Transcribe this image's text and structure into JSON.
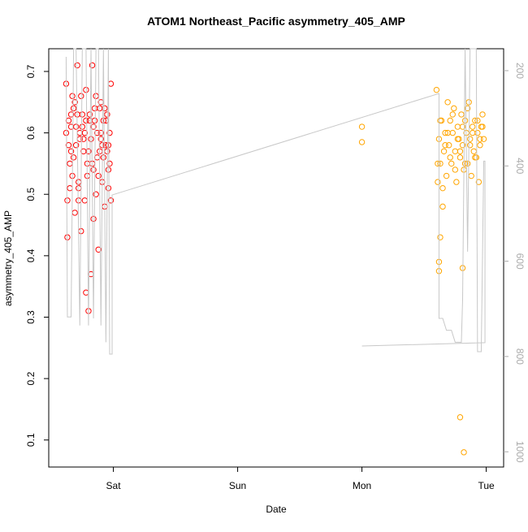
{
  "chart_data": {
    "type": "scatter",
    "title": "ATOM1 Northeast_Pacific asymmetry_405_AMP",
    "xlabel": "Date",
    "ylabel": "asymmetry_405_AMP",
    "xlim": [
      0.48,
      4.14
    ],
    "xticks": [
      {
        "value": 1,
        "label": "Sat"
      },
      {
        "value": 2,
        "label": "Sun"
      },
      {
        "value": 3,
        "label": "Mon"
      },
      {
        "value": 4,
        "label": "Tue"
      }
    ],
    "ylim": [
      0.056,
      0.737
    ],
    "yticks": [
      0.1,
      0.2,
      0.3,
      0.4,
      0.5,
      0.6,
      0.7
    ],
    "y2lim": [
      1032,
      154
    ],
    "y2ticks": [
      200,
      400,
      600,
      800,
      1000
    ],
    "series": [
      {
        "color": "#ff0000",
        "x": [
          0.62,
          0.63,
          0.64,
          0.65,
          0.66,
          0.67,
          0.68,
          0.69,
          0.7,
          0.71,
          0.72,
          0.73,
          0.74,
          0.75,
          0.76,
          0.77,
          0.78,
          0.79,
          0.8,
          0.81,
          0.82,
          0.83,
          0.84,
          0.85,
          0.86,
          0.87,
          0.88,
          0.89,
          0.9,
          0.91,
          0.92,
          0.93,
          0.94,
          0.95,
          0.96,
          0.97,
          0.98,
          0.63,
          0.66,
          0.69,
          0.72,
          0.75,
          0.78,
          0.81,
          0.84,
          0.87,
          0.9,
          0.93,
          0.96,
          0.98,
          0.62,
          0.64,
          0.66,
          0.68,
          0.7,
          0.72,
          0.74,
          0.76,
          0.78,
          0.8,
          0.82,
          0.84,
          0.86,
          0.88,
          0.9,
          0.92,
          0.94,
          0.96,
          0.97,
          0.65,
          0.71,
          0.77,
          0.83,
          0.89,
          0.95,
          0.67,
          0.73,
          0.79,
          0.85,
          0.91
        ],
        "values": [
          0.68,
          0.49,
          0.62,
          0.55,
          0.61,
          0.53,
          0.64,
          0.47,
          0.58,
          0.71,
          0.52,
          0.6,
          0.44,
          0.63,
          0.57,
          0.49,
          0.67,
          0.55,
          0.31,
          0.62,
          0.59,
          0.71,
          0.54,
          0.64,
          0.5,
          0.6,
          0.41,
          0.57,
          0.65,
          0.52,
          0.62,
          0.48,
          0.58,
          0.63,
          0.51,
          0.6,
          0.68,
          0.43,
          0.57,
          0.65,
          0.51,
          0.61,
          0.34,
          0.63,
          0.46,
          0.56,
          0.59,
          0.64,
          0.54,
          0.49,
          0.6,
          0.58,
          0.63,
          0.56,
          0.61,
          0.49,
          0.66,
          0.59,
          0.62,
          0.57,
          0.37,
          0.61,
          0.66,
          0.53,
          0.6,
          0.56,
          0.62,
          0.58,
          0.55,
          0.51,
          0.63,
          0.6,
          0.55,
          0.64,
          0.57,
          0.66,
          0.59,
          0.53,
          0.62,
          0.58
        ]
      },
      {
        "color": "#ffa500",
        "x": [
          3.0,
          3.0,
          3.6,
          3.61,
          3.62,
          3.63,
          3.64,
          3.65,
          3.66,
          3.67,
          3.68,
          3.69,
          3.7,
          3.71,
          3.72,
          3.73,
          3.74,
          3.75,
          3.76,
          3.77,
          3.78,
          3.79,
          3.8,
          3.81,
          3.82,
          3.83,
          3.84,
          3.85,
          3.86,
          3.87,
          3.88,
          3.89,
          3.9,
          3.91,
          3.92,
          3.93,
          3.94,
          3.95,
          3.96,
          3.97,
          3.98,
          3.61,
          3.63,
          3.65,
          3.67,
          3.69,
          3.71,
          3.73,
          3.75,
          3.77,
          3.79,
          3.81,
          3.83,
          3.85,
          3.87,
          3.89,
          3.91,
          3.93,
          3.95,
          3.97,
          3.79,
          3.82,
          3.81,
          3.62,
          3.62,
          3.63
        ],
        "values": [
          0.61,
          0.585,
          0.67,
          0.52,
          0.59,
          0.55,
          0.62,
          0.48,
          0.57,
          0.6,
          0.53,
          0.65,
          0.58,
          0.62,
          0.55,
          0.6,
          0.64,
          0.57,
          0.52,
          0.61,
          0.59,
          0.56,
          0.63,
          0.58,
          0.54,
          0.62,
          0.6,
          0.55,
          0.65,
          0.59,
          0.53,
          0.61,
          0.57,
          0.62,
          0.56,
          0.6,
          0.52,
          0.58,
          0.61,
          0.63,
          0.59,
          0.55,
          0.62,
          0.51,
          0.58,
          0.6,
          0.56,
          0.63,
          0.54,
          0.59,
          0.57,
          0.61,
          0.55,
          0.64,
          0.58,
          0.6,
          0.56,
          0.62,
          0.59,
          0.61,
          0.137,
          0.08,
          0.38,
          0.375,
          0.39,
          0.43
        ]
      },
      {
        "color": "#c8c8c8",
        "type": "line",
        "axis": "y2",
        "x": [
          0.62,
          0.63,
          0.66,
          0.68,
          0.7,
          0.73,
          0.75,
          0.78,
          0.8,
          0.82,
          0.84,
          0.86,
          0.88,
          0.9,
          0.92,
          0.94,
          0.96,
          0.97,
          0.99,
          0.99,
          3.62,
          3.62,
          3.65,
          3.68,
          3.72,
          3.75,
          3.8,
          3.81,
          3.83,
          3.85,
          3.87,
          3.92,
          3.93,
          3.96,
          3.98,
          3.99,
          3.99,
          3.0
        ],
        "values": [
          171,
          717,
          717,
          154,
          154,
          735,
          154,
          154,
          735,
          154,
          720,
          154,
          154,
          735,
          154,
          770,
          154,
          795,
          795,
          461,
          248,
          720,
          720,
          745,
          745,
          770,
          770,
          680,
          154,
          580,
          154,
          154,
          790,
          790,
          390,
          390,
          771,
          778
        ]
      }
    ]
  }
}
